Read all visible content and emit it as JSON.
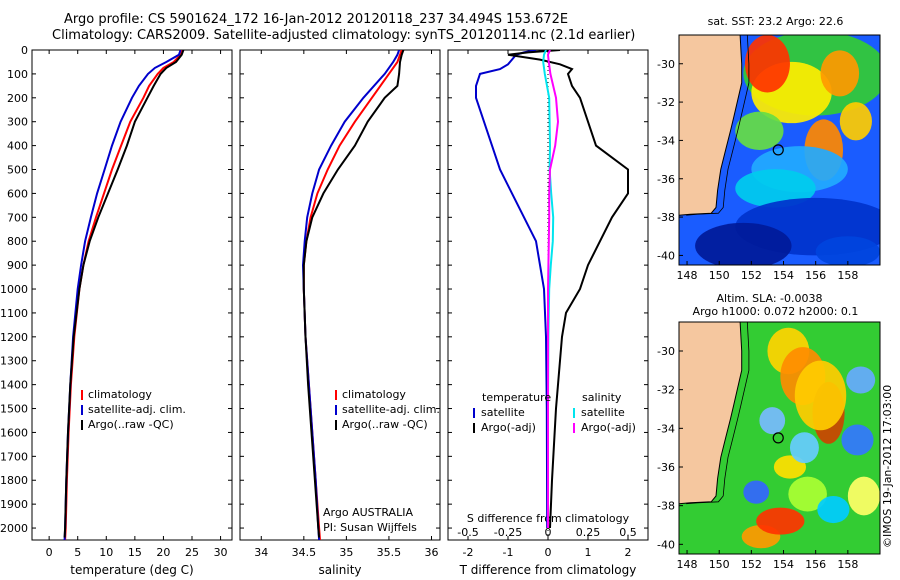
{
  "header": {
    "line1": "Argo profile: CS 5901624_172 16-Jan-2012 20120118_237 34.494S 153.672E",
    "line2": "Climatology: CARS2009. Satellite-adjusted climatology: synTS_20120114.nc (2.1d earlier)"
  },
  "colors": {
    "clim": "#ff0000",
    "sat": "#0000cc",
    "argo": "#000000",
    "sat_s": "#00e5ee",
    "argo_s": "#ff00ff",
    "land": "#f5c79f"
  },
  "credit": "©IMOS 19-Jan-2012 17:03:00",
  "chart_data": [
    {
      "type": "line",
      "panel": "temperature",
      "xlabel": "temperature (deg C)",
      "ylabel": "",
      "xlim": [
        -3,
        32
      ],
      "ylim": [
        2050,
        0
      ],
      "xticks": [
        "0",
        "5",
        "10",
        "15",
        "20",
        "25",
        "30"
      ],
      "xtick_values": [
        0,
        5,
        10,
        15,
        20,
        25,
        30
      ],
      "yticks": [
        "0",
        "100",
        "200",
        "300",
        "400",
        "500",
        "600",
        "700",
        "800",
        "900",
        "1000",
        "1100",
        "1200",
        "1300",
        "1400",
        "1500",
        "1600",
        "1700",
        "1800",
        "1900",
        "2000"
      ],
      "legend": [
        "climatology",
        "satellite-adj. clim.",
        "Argo(..raw -QC)"
      ],
      "series": [
        {
          "name": "climatology",
          "color": "#ff0000",
          "depth": [
            0,
            20,
            50,
            75,
            100,
            150,
            200,
            300,
            400,
            500,
            600,
            700,
            800,
            900,
            1000,
            1200,
            1400,
            1600,
            1800,
            2000,
            2050
          ],
          "values": [
            23.3,
            23.0,
            21.8,
            20.0,
            19.0,
            17.5,
            16.5,
            14.2,
            12.6,
            11.0,
            9.6,
            8.2,
            6.9,
            6.0,
            5.3,
            4.4,
            3.8,
            3.4,
            3.1,
            2.9,
            2.8
          ]
        },
        {
          "name": "satellite-adj. clim.",
          "color": "#0000cc",
          "depth": [
            0,
            20,
            50,
            75,
            100,
            150,
            200,
            300,
            400,
            500,
            600,
            700,
            800,
            900,
            1000,
            1200,
            1400,
            1600,
            1800,
            2000,
            2050
          ],
          "values": [
            23.0,
            22.7,
            20.5,
            18.5,
            17.3,
            15.7,
            14.5,
            12.5,
            11.0,
            9.7,
            8.4,
            7.3,
            6.3,
            5.6,
            5.0,
            4.2,
            3.7,
            3.3,
            3.0,
            2.8,
            2.7
          ]
        },
        {
          "name": "Argo(..raw -QC)",
          "color": "#000000",
          "depth": [
            0,
            20,
            50,
            75,
            100,
            150,
            200,
            300,
            400,
            500,
            600,
            700,
            800,
            900,
            1000,
            1200,
            1400,
            1600,
            1800,
            2000,
            2040
          ],
          "values": [
            23.5,
            23.2,
            22.2,
            20.5,
            19.5,
            18.3,
            17.2,
            15.0,
            13.6,
            12.0,
            10.3,
            8.6,
            7.1,
            6.0,
            5.3,
            4.3,
            3.7,
            3.3,
            3.0,
            2.8,
            2.7
          ]
        }
      ]
    },
    {
      "type": "line",
      "panel": "salinity",
      "xlabel": "salinity",
      "xlim": [
        33.75,
        36.1
      ],
      "ylim": [
        2050,
        0
      ],
      "xticks": [
        "34",
        "34.5",
        "35",
        "35.5",
        "36"
      ],
      "xtick_values": [
        34,
        34.5,
        35,
        35.5,
        36
      ],
      "legend": [
        "climatology",
        "satellite-adj. clim.",
        "Argo(..raw -QC)"
      ],
      "annotation": [
        "Argo AUSTRALIA",
        "PI: Susan Wijffels"
      ],
      "series": [
        {
          "name": "climatology",
          "color": "#ff0000",
          "depth": [
            0,
            20,
            50,
            100,
            200,
            300,
            400,
            500,
            600,
            700,
            800,
            900,
            1000,
            1200,
            1400,
            1600,
            1800,
            2000,
            2050
          ],
          "values": [
            35.65,
            35.63,
            35.6,
            35.5,
            35.3,
            35.1,
            34.92,
            34.78,
            34.66,
            34.58,
            34.53,
            34.5,
            34.5,
            34.52,
            34.56,
            34.6,
            34.64,
            34.68,
            34.69
          ]
        },
        {
          "name": "satellite-adj. clim.",
          "color": "#0000cc",
          "depth": [
            0,
            20,
            50,
            100,
            200,
            300,
            400,
            500,
            600,
            700,
            800,
            900,
            1000,
            1200,
            1400,
            1600,
            1800,
            2000,
            2050
          ],
          "values": [
            35.62,
            35.6,
            35.55,
            35.45,
            35.2,
            34.98,
            34.82,
            34.68,
            34.6,
            34.54,
            34.51,
            34.49,
            34.5,
            34.52,
            34.56,
            34.6,
            34.64,
            34.67,
            34.68
          ]
        },
        {
          "name": "Argo(..raw -QC)",
          "color": "#000000",
          "depth": [
            0,
            20,
            50,
            100,
            150,
            200,
            300,
            400,
            500,
            600,
            700,
            800,
            900,
            1000,
            1200,
            1400,
            1600,
            1800,
            2000,
            2040
          ],
          "values": [
            35.67,
            35.65,
            35.63,
            35.62,
            35.6,
            35.45,
            35.25,
            35.1,
            34.9,
            34.73,
            34.6,
            34.53,
            34.5,
            34.5,
            34.52,
            34.55,
            34.59,
            34.63,
            34.67,
            34.68
          ]
        }
      ]
    },
    {
      "type": "line",
      "panel": "difference",
      "xlabel": "T difference from climatology",
      "top_xlabel": "S difference from climatology",
      "xlim": [
        -2.5,
        2.5
      ],
      "ylim": [
        2050,
        0
      ],
      "xticks": [
        "-2",
        "-1",
        "0",
        "1",
        "2"
      ],
      "xtick_values": [
        -2,
        -1,
        0,
        1,
        2
      ],
      "sticks": [
        "-0.5",
        "-0.25",
        "0",
        "0.25",
        "0.5"
      ],
      "stick_values": [
        -0.5,
        -0.25,
        0,
        0.25,
        0.5
      ],
      "s_scale": 4,
      "legend": {
        "temperature": "temperature",
        "salinity": "salinity",
        "t_items": [
          "satellite",
          "Argo(-adj)"
        ],
        "s_items": [
          "satellite",
          "Argo(-adj)"
        ]
      },
      "series": [
        {
          "name": "satellite",
          "color": "#0000cc",
          "depth": [
            0,
            10,
            20,
            40,
            60,
            80,
            100,
            150,
            200,
            300,
            400,
            500,
            600,
            700,
            800,
            900,
            1000,
            1200,
            1500,
            2000
          ],
          "values": [
            -0.3,
            -0.6,
            -0.8,
            -0.9,
            -1.0,
            -1.2,
            -1.7,
            -1.8,
            -1.8,
            -1.6,
            -1.4,
            -1.2,
            -0.9,
            -0.6,
            -0.3,
            -0.2,
            -0.1,
            -0.05,
            -0.03,
            -0.02
          ]
        },
        {
          "name": "Argo(-adj)",
          "color": "#000000",
          "depth": [
            0,
            10,
            20,
            40,
            60,
            80,
            100,
            150,
            200,
            300,
            400,
            500,
            600,
            700,
            800,
            900,
            1000,
            1100,
            1200,
            1500,
            1800,
            2000
          ],
          "values": [
            0.3,
            -0.5,
            -1.0,
            -0.2,
            0.3,
            0.6,
            0.5,
            0.6,
            0.8,
            1.0,
            1.2,
            2.0,
            2.0,
            1.6,
            1.3,
            1.0,
            0.8,
            0.45,
            0.35,
            0.2,
            0.1,
            0.05
          ]
        },
        {
          "name": "satellite",
          "color": "#00e5ee",
          "depth": [
            0,
            20,
            50,
            100,
            200,
            300,
            400,
            500,
            600,
            700,
            800,
            900,
            1000,
            1200,
            1500,
            2000
          ],
          "values": [
            -0.05,
            -0.1,
            -0.12,
            -0.08,
            0.03,
            0.04,
            0.05,
            0.04,
            0.08,
            0.13,
            0.12,
            0.07,
            0.03,
            0.01,
            0.0,
            0.0
          ]
        },
        {
          "name": "Argo(-adj)",
          "color": "#ff00ff",
          "depth": [
            0,
            20,
            50,
            100,
            200,
            300,
            400,
            500,
            600,
            700,
            800,
            900,
            1000,
            1200,
            1500,
            2000
          ],
          "values": [
            0.05,
            0.0,
            0.02,
            0.06,
            0.2,
            0.25,
            0.18,
            0.05,
            0.03,
            0.03,
            0.02,
            0.01,
            0.0,
            0.0,
            0.0,
            0.0
          ]
        }
      ]
    },
    {
      "type": "heatmap",
      "panel": "sst-map",
      "title": "sat. SST: 23.2  Argo: 22.6",
      "xlim": [
        147.5,
        160
      ],
      "ylim": [
        -40.5,
        -28.5
      ],
      "xticks": [
        "148",
        "150",
        "152",
        "154",
        "156",
        "158"
      ],
      "xtick_values": [
        148,
        150,
        152,
        154,
        156,
        158
      ],
      "yticks": [
        "-30",
        "-32",
        "-34",
        "-36",
        "-38",
        "-40"
      ],
      "ytick_values": [
        -30,
        -32,
        -34,
        -36,
        -38,
        -40
      ],
      "marker": {
        "lon": 153.672,
        "lat": -34.494
      }
    },
    {
      "type": "heatmap",
      "panel": "sla-map",
      "title": "Altim. SLA: -0.0038",
      "subtitle": "Argo h1000: 0.072  h2000: 0.1",
      "xlim": [
        147.5,
        160
      ],
      "ylim": [
        -40.5,
        -28.5
      ],
      "xticks": [
        "148",
        "150",
        "152",
        "154",
        "156",
        "158"
      ],
      "xtick_values": [
        148,
        150,
        152,
        154,
        156,
        158
      ],
      "yticks": [
        "-30",
        "-32",
        "-34",
        "-36",
        "-38",
        "-40"
      ],
      "ytick_values": [
        -30,
        -32,
        -34,
        -36,
        -38,
        -40
      ],
      "marker": {
        "lon": 153.672,
        "lat": -34.494
      }
    }
  ]
}
